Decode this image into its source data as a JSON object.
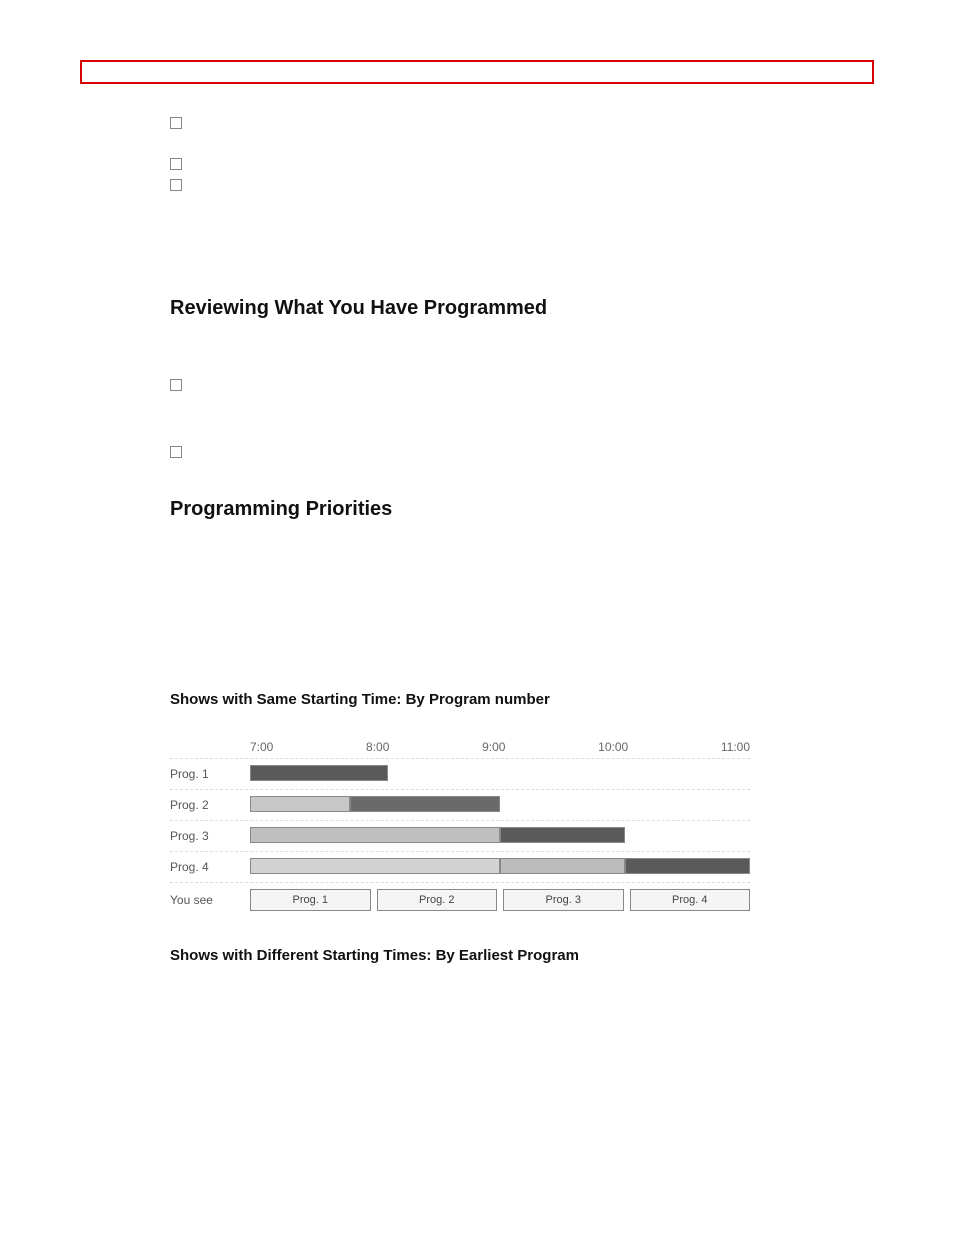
{
  "top_bullets": [
    {
      "label": ""
    },
    {
      "label": ""
    },
    {
      "label": ""
    }
  ],
  "section1": {
    "heading": "Reviewing What You Have Programmed",
    "bullets": [
      {
        "label": ""
      },
      {
        "label": ""
      }
    ]
  },
  "section2": {
    "heading": "Programming Priorities",
    "subhead1": "Shows with Same Starting Time: By Program number",
    "subhead2": "Shows with Different Starting Times: By Earliest Program"
  },
  "chart": {
    "type": "gantt",
    "time_axis": {
      "start": 7.0,
      "end": 11.0,
      "ticks": [
        "7:00",
        "8:00",
        "9:00",
        "10:00",
        "11:00"
      ]
    },
    "row_labels": [
      "Prog. 1",
      "Prog. 2",
      "Prog. 3",
      "Prog. 4"
    ],
    "bars": [
      {
        "row": 0,
        "start": 7.0,
        "end": 8.1,
        "color": "#5a5a5a"
      },
      {
        "row": 1,
        "start": 7.0,
        "end": 7.8,
        "color": "#c7c7c7"
      },
      {
        "row": 1,
        "start": 7.8,
        "end": 9.0,
        "color": "#6a6a6a"
      },
      {
        "row": 2,
        "start": 7.0,
        "end": 9.0,
        "color": "#bfbfbf"
      },
      {
        "row": 2,
        "start": 9.0,
        "end": 10.0,
        "color": "#5a5a5a"
      },
      {
        "row": 3,
        "start": 7.0,
        "end": 9.0,
        "color": "#d3d3d3"
      },
      {
        "row": 3,
        "start": 9.0,
        "end": 10.0,
        "color": "#bcbcbc"
      },
      {
        "row": 3,
        "start": 10.0,
        "end": 11.0,
        "color": "#5a5a5a"
      }
    ],
    "bar_border_color": "#888888",
    "grid_color": "#dddddd",
    "text_color": "#555555",
    "background_color": "#ffffff",
    "you_see": {
      "label": "You see",
      "cells": [
        "Prog. 1",
        "Prog. 2",
        "Prog. 3",
        "Prog. 4"
      ],
      "cell_bg": "#f5f5f5",
      "cell_border": "#888888"
    },
    "label_fontsize": 12
  }
}
